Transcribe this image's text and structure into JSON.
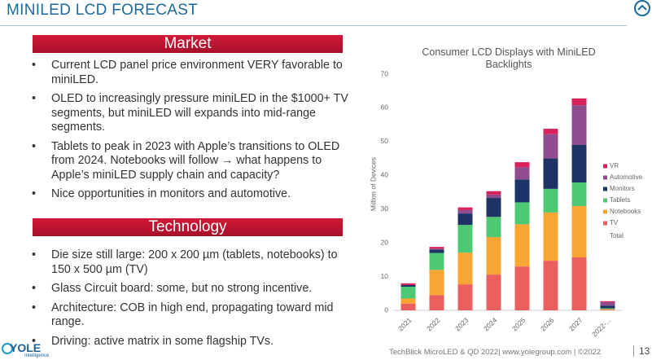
{
  "header": {
    "title": "MINILED LCD FORECAST"
  },
  "sections": [
    {
      "heading": "Market",
      "bullets": [
        "Current LCD panel price environment VERY favorable to miniLED.",
        "OLED to increasingly pressure miniLED in the $1000+ TV segments, but miniLED will expands into mid-range segments.",
        "Tablets to peak in 2023 with Apple’s transitions to OLED from 2024. Notebooks will follow → what happens to Apple’s miniLED supply chain and capacity?",
        "Nice opportunities in monitors and automotive."
      ]
    },
    {
      "heading": "Technology",
      "bullets": [
        "Die size still large: 200 x 200 µm (tablets, notebooks) to 150 x 500 µm (TV)",
        "Glass Circuit board: some, but no strong incentive.",
        "Architecture: COB in high end, propagating toward mid range.",
        "Driving: active matrix in some flagship TVs."
      ]
    }
  ],
  "logo": {
    "name": "YOLE",
    "sub": "Intelligence"
  },
  "footer": {
    "text": "TechBlick MicroLED & QD 2022| www.yolegroup.com | ©2022",
    "page": "13"
  },
  "chart_data": {
    "type": "stacked_bar",
    "title": "Consumer LCD Displays with MiniLED Backlights",
    "y_label": "Million of Devices",
    "categories": [
      "2021",
      "2022",
      "2023",
      "2024",
      "2025",
      "2026",
      "2027",
      "2022-..."
    ],
    "series": [
      {
        "name": "TV",
        "color": "#ec5f5f",
        "values": [
          2,
          4.5,
          7.7,
          10.6,
          13,
          14.7,
          15.7,
          0.2
        ]
      },
      {
        "name": "Notebooks",
        "color": "#f7a533",
        "values": [
          1.5,
          7.5,
          9.4,
          11.1,
          12.5,
          14.3,
          15.2,
          0.2
        ]
      },
      {
        "name": "Tablets",
        "color": "#4dc873",
        "values": [
          3.5,
          5,
          8.2,
          6,
          6.5,
          7,
          7,
          0.2
        ]
      },
      {
        "name": "Monitors",
        "color": "#1e3365",
        "values": [
          0.5,
          1,
          3.4,
          5.6,
          6.8,
          9,
          11.1,
          0.8
        ]
      },
      {
        "name": "Automotive",
        "color": "#8f4c8f",
        "values": [
          0,
          0.3,
          1,
          1,
          3.6,
          7.2,
          11.8,
          1
        ]
      },
      {
        "name": "VR",
        "color": "#d9215a",
        "values": [
          0.5,
          0.5,
          0.8,
          1,
          1.5,
          1.6,
          2,
          0.3
        ]
      }
    ],
    "legend_extra": "Total",
    "ylim": [
      0,
      70
    ],
    "yticks": [
      0,
      10,
      20,
      30,
      40,
      50,
      60,
      70
    ],
    "grid": false
  }
}
